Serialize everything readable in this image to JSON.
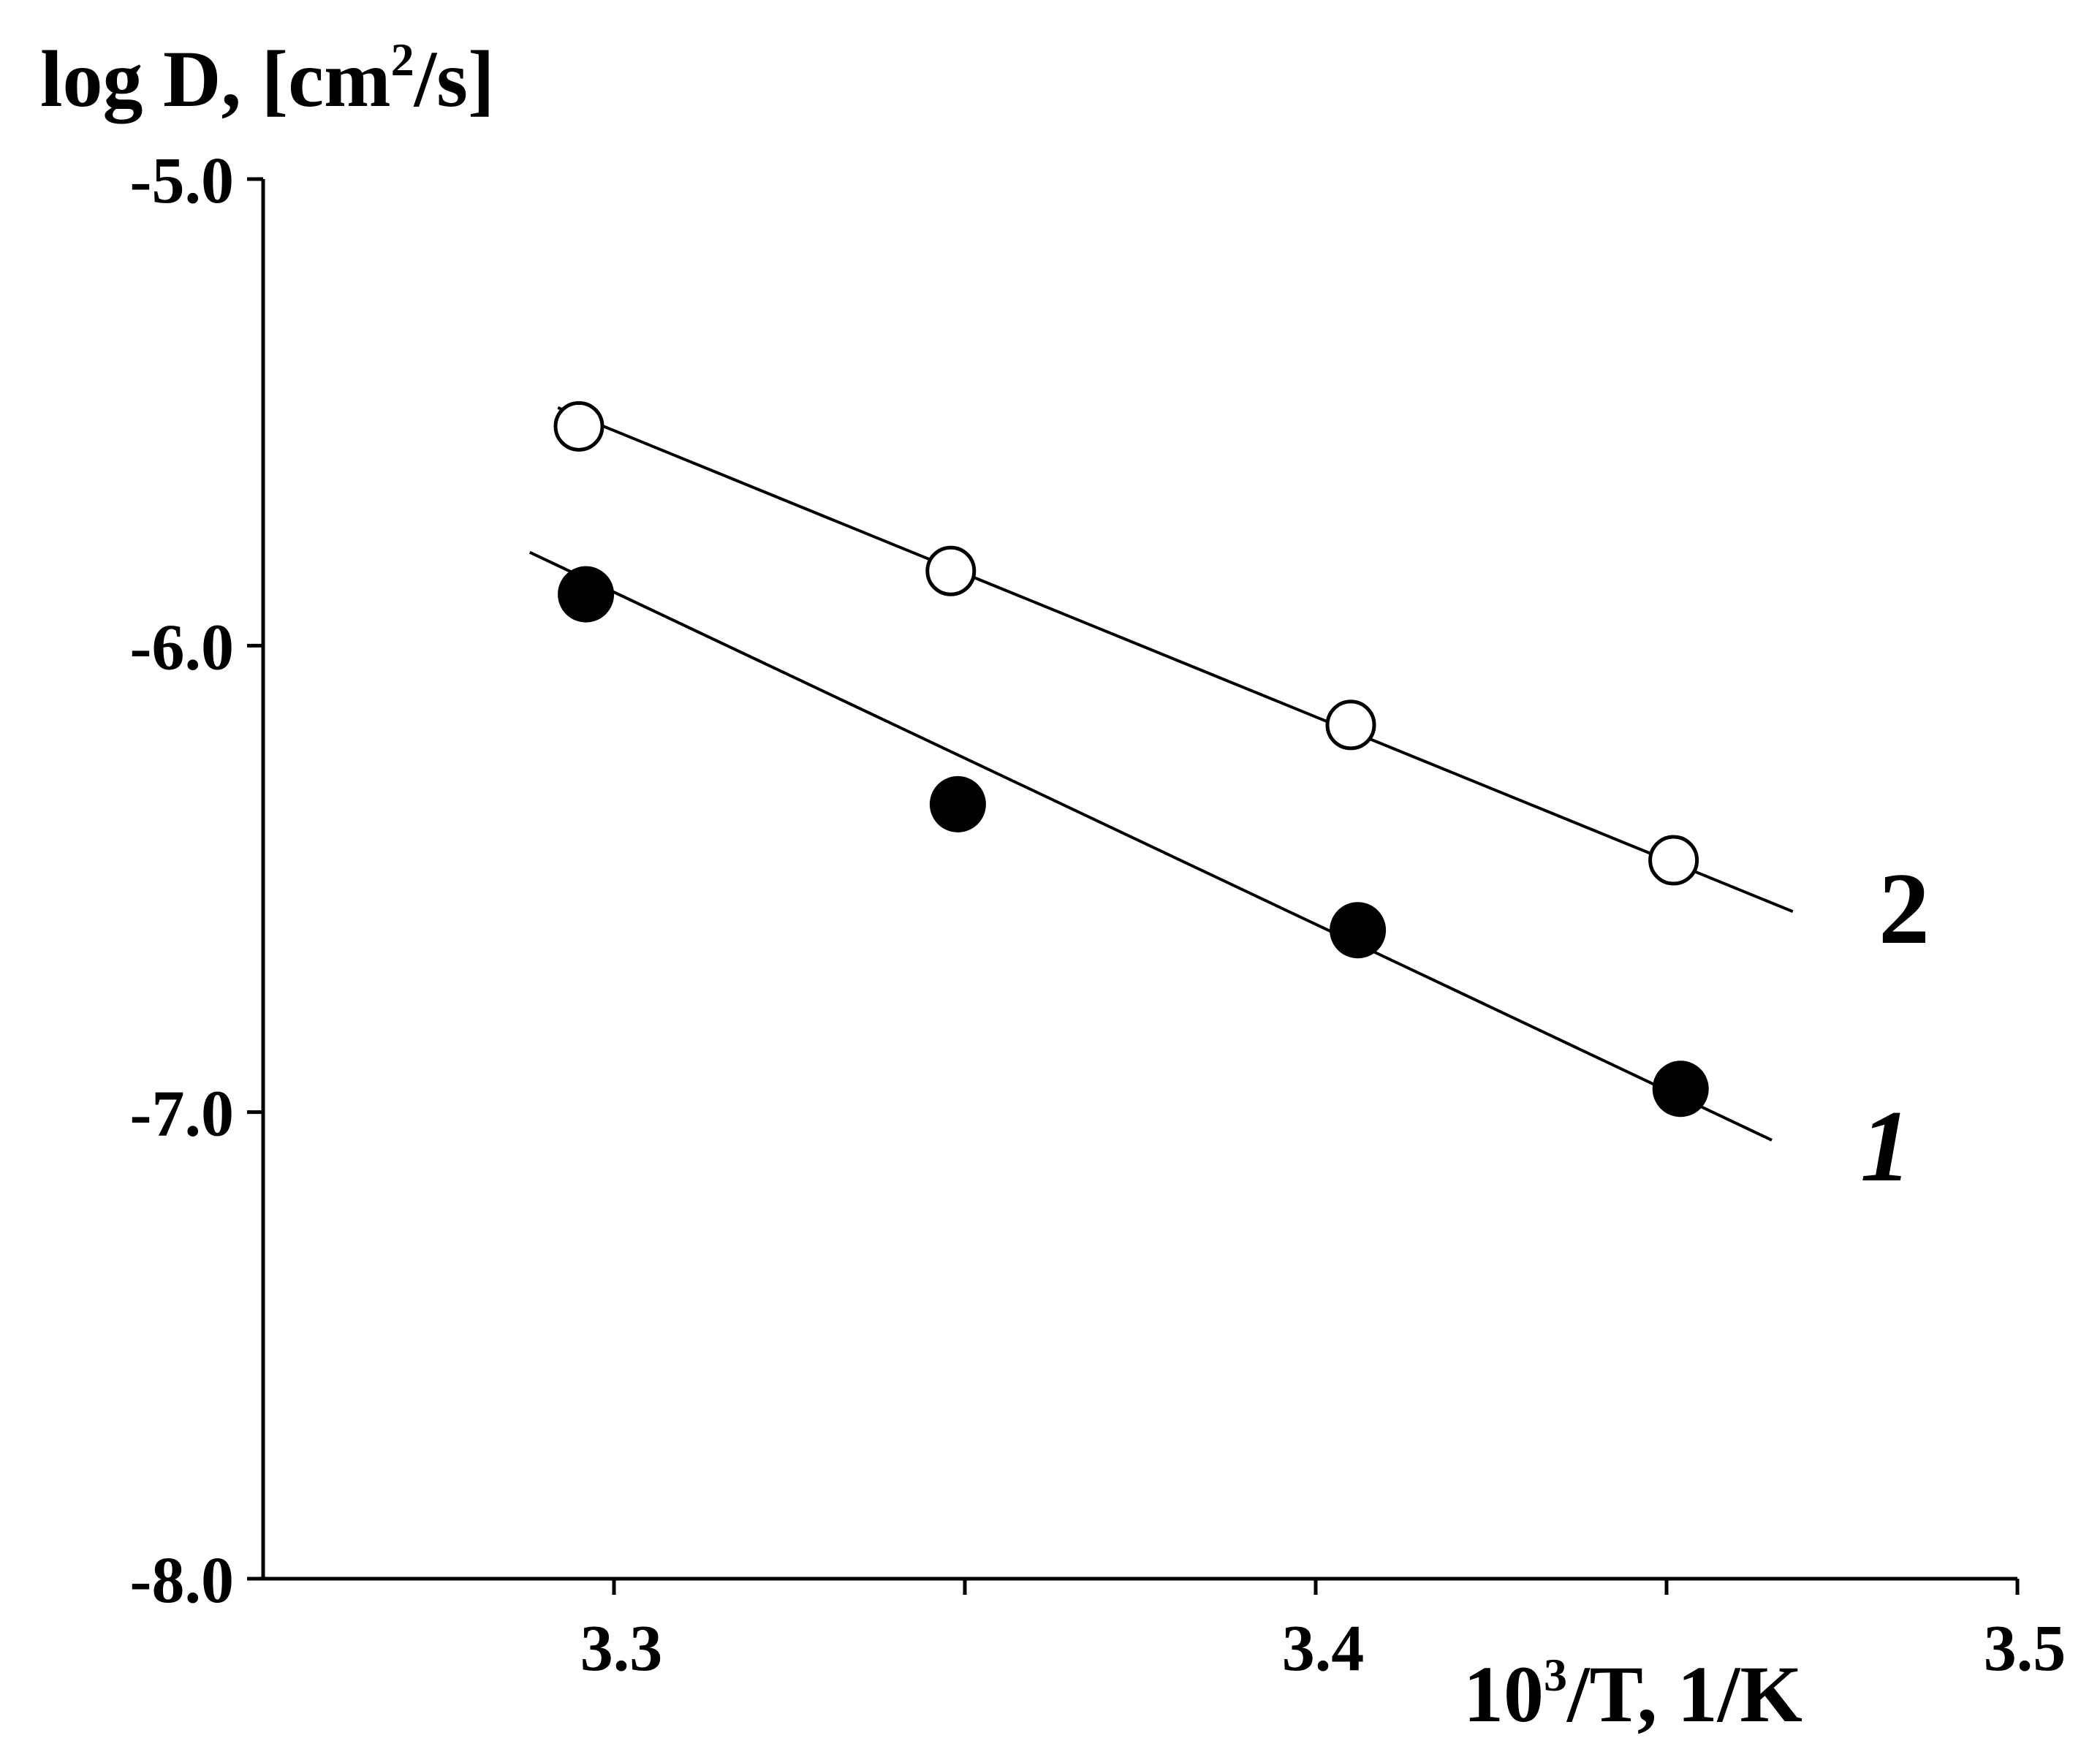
{
  "chart_data": {
    "type": "scatter",
    "ylabel": {
      "base": "log D, [cm",
      "sup": "2",
      "tail": "/s]"
    },
    "xlabel": {
      "base": "10",
      "sup": "3",
      "tail": "/T, 1/K"
    },
    "xlim": [
      3.25,
      3.5
    ],
    "ylim": [
      -8.0,
      -5.0
    ],
    "xticks": [
      3.3,
      3.35,
      3.4,
      3.45,
      3.5
    ],
    "xtick_labels": [
      "3.3",
      "",
      "3.4",
      "",
      "3.5"
    ],
    "yticks": [
      -5.0,
      -6.0,
      -7.0,
      -8.0
    ],
    "ytick_labels": [
      "-5.0",
      "-6.0",
      "-7.0",
      "-8.0"
    ],
    "series": [
      {
        "name": "2",
        "marker": "open-circle",
        "points": [
          {
            "x": 3.295,
            "y": -5.53
          },
          {
            "x": 3.348,
            "y": -5.84
          },
          {
            "x": 3.405,
            "y": -6.17
          },
          {
            "x": 3.451,
            "y": -6.46
          }
        ],
        "fit": {
          "x": [
            3.292,
            3.468
          ],
          "y": [
            -5.49,
            -6.57
          ]
        }
      },
      {
        "name": "1",
        "marker": "filled-circle",
        "points": [
          {
            "x": 3.296,
            "y": -5.89
          },
          {
            "x": 3.349,
            "y": -6.34
          },
          {
            "x": 3.406,
            "y": -6.61
          },
          {
            "x": 3.452,
            "y": -6.95
          }
        ],
        "fit": {
          "x": [
            3.288,
            3.465
          ],
          "y": [
            -5.8,
            -7.06
          ]
        }
      }
    ],
    "curve_labels": [
      "2",
      "1"
    ]
  }
}
